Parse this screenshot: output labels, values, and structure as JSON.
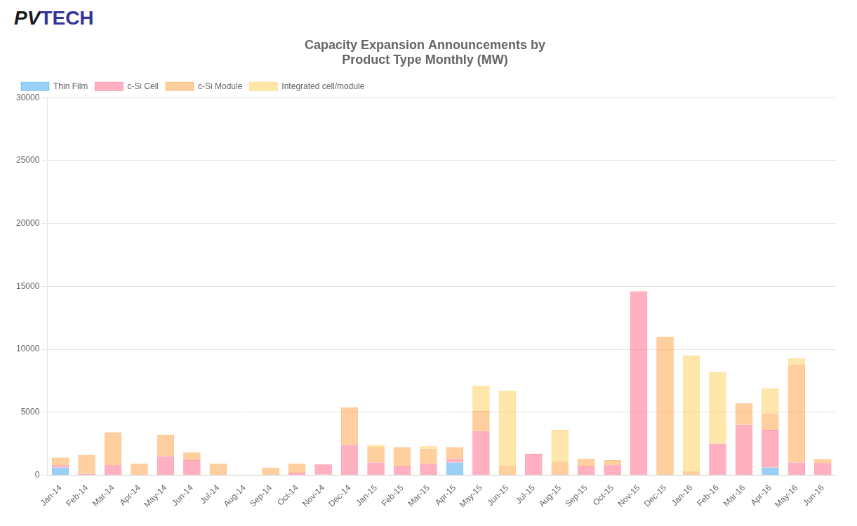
{
  "chart_data": {
    "type": "bar",
    "stacked": true,
    "title": "Capacity Expansion Announcements by\nProduct Type Monthly (MW)",
    "annotations": [
      "PV",
      "TECH"
    ],
    "categories": [
      "Jan-14",
      "Feb-14",
      "Mar-14",
      "Apr-14",
      "May-14",
      "Jun-14",
      "Jul-14",
      "Aug-14",
      "Sep-14",
      "Oct-14",
      "Nov-14",
      "Dec-14",
      "Jan-15",
      "Feb-15",
      "Mar-15",
      "Apr-15",
      "May-15",
      "Jun-15",
      "Jul-15",
      "Aug-15",
      "Sep-15",
      "Oct-15",
      "Nov-15",
      "Dec-15",
      "Jan-16",
      "Feb-16",
      "Mar-16",
      "Apr-16",
      "May-16",
      "Jun-16"
    ],
    "series": [
      {
        "name": "Thin Film",
        "values": [
          600,
          0,
          0,
          0,
          0,
          0,
          0,
          0,
          0,
          0,
          50,
          0,
          0,
          0,
          0,
          1000,
          0,
          0,
          0,
          0,
          0,
          0,
          0,
          0,
          0,
          0,
          0,
          600,
          0,
          0
        ]
      },
      {
        "name": "c-Si Cell",
        "values": [
          200,
          100,
          800,
          0,
          1500,
          1200,
          0,
          0,
          0,
          200,
          800,
          2400,
          1000,
          700,
          900,
          300,
          3500,
          0,
          1700,
          0,
          700,
          800,
          14600,
          0,
          0,
          2500,
          4000,
          3000,
          1000,
          960
        ]
      },
      {
        "name": "c-Si Module",
        "values": [
          600,
          1500,
          2600,
          900,
          1700,
          600,
          900,
          0,
          600,
          700,
          0,
          3000,
          1200,
          1500,
          1200,
          900,
          1600,
          700,
          0,
          1100,
          600,
          400,
          0,
          11000,
          300,
          0,
          1700,
          1300,
          7800,
          300
        ]
      },
      {
        "name": "Integrated cell/module",
        "values": [
          0,
          0,
          0,
          0,
          0,
          0,
          0,
          0,
          0,
          0,
          0,
          0,
          200,
          0,
          200,
          0,
          2000,
          6000,
          0,
          2500,
          0,
          0,
          0,
          0,
          9200,
          5700,
          0,
          2000,
          500,
          0
        ]
      }
    ],
    "ylim": [
      0,
      30000
    ],
    "yticks": [
      0,
      5000,
      10000,
      15000,
      20000,
      25000,
      30000
    ],
    "grid": true,
    "legend": "upper left"
  }
}
